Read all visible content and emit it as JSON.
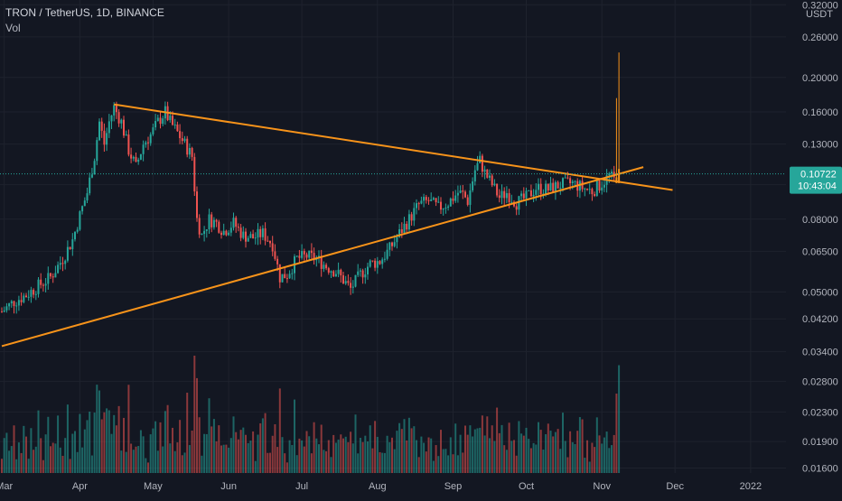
{
  "chart_data": {
    "type": "candlestick",
    "title": "TRON / TetherUS, 1D, BINANCE",
    "indicator_label": "Vol",
    "currency_label": "USDT",
    "y_scale": "log",
    "ylim": [
      0.0155,
      0.33
    ],
    "y_ticks": [
      "0.32000",
      "0.26000",
      "0.20000",
      "0.16000",
      "0.13000",
      "0.10000",
      "0.08000",
      "0.06500",
      "0.05000",
      "0.04200",
      "0.03400",
      "0.02800",
      "0.02300",
      "0.01900",
      "0.01600"
    ],
    "x_ticks": [
      "Mar",
      "Apr",
      "May",
      "Jun",
      "Jul",
      "Aug",
      "Sep",
      "Oct",
      "Nov",
      "Dec",
      "2022"
    ],
    "last_price": "0.10722",
    "countdown": "10:43:04",
    "colors": {
      "up": "#26a69a",
      "down": "#ef5350",
      "trendline": "#f7931a",
      "background": "#131722",
      "price_tag": "#26a69a"
    },
    "trendlines": [
      {
        "name": "descending-resistance",
        "from": {
          "date": "2021-04-15",
          "price": 0.168
        },
        "to": {
          "date": "2021-11-30",
          "price": 0.0966
        }
      },
      {
        "name": "ascending-support",
        "from": {
          "date": "2021-02-28",
          "price": 0.0352
        },
        "to": {
          "date": "2021-11-18",
          "price": 0.112
        }
      }
    ],
    "price_path": [
      [
        "2021-02-28",
        0.044
      ],
      [
        "2021-03-05",
        0.047
      ],
      [
        "2021-03-10",
        0.049
      ],
      [
        "2021-03-15",
        0.052
      ],
      [
        "2021-03-20",
        0.055
      ],
      [
        "2021-03-25",
        0.062
      ],
      [
        "2021-03-29",
        0.07
      ],
      [
        "2021-04-01",
        0.082
      ],
      [
        "2021-04-04",
        0.095
      ],
      [
        "2021-04-07",
        0.12
      ],
      [
        "2021-04-09",
        0.15
      ],
      [
        "2021-04-11",
        0.13
      ],
      [
        "2021-04-13",
        0.15
      ],
      [
        "2021-04-15",
        0.165
      ],
      [
        "2021-04-18",
        0.15
      ],
      [
        "2021-04-21",
        0.125
      ],
      [
        "2021-04-24",
        0.112
      ],
      [
        "2021-04-27",
        0.13
      ],
      [
        "2021-04-30",
        0.138
      ],
      [
        "2021-05-03",
        0.15
      ],
      [
        "2021-05-06",
        0.16
      ],
      [
        "2021-05-08",
        0.15
      ],
      [
        "2021-05-11",
        0.14
      ],
      [
        "2021-05-14",
        0.13
      ],
      [
        "2021-05-17",
        0.12
      ],
      [
        "2021-05-19",
        0.08
      ],
      [
        "2021-05-21",
        0.072
      ],
      [
        "2021-05-24",
        0.08
      ],
      [
        "2021-05-27",
        0.078
      ],
      [
        "2021-05-30",
        0.074
      ],
      [
        "2021-06-03",
        0.078
      ],
      [
        "2021-06-07",
        0.072
      ],
      [
        "2021-06-11",
        0.071
      ],
      [
        "2021-06-15",
        0.073
      ],
      [
        "2021-06-19",
        0.068
      ],
      [
        "2021-06-22",
        0.055
      ],
      [
        "2021-06-25",
        0.056
      ],
      [
        "2021-06-29",
        0.062
      ],
      [
        "2021-07-03",
        0.063
      ],
      [
        "2021-07-07",
        0.062
      ],
      [
        "2021-07-11",
        0.059
      ],
      [
        "2021-07-15",
        0.057
      ],
      [
        "2021-07-19",
        0.053
      ],
      [
        "2021-07-21",
        0.051
      ],
      [
        "2021-07-25",
        0.056
      ],
      [
        "2021-07-29",
        0.06
      ],
      [
        "2021-08-02",
        0.061
      ],
      [
        "2021-08-06",
        0.066
      ],
      [
        "2021-08-10",
        0.073
      ],
      [
        "2021-08-14",
        0.08
      ],
      [
        "2021-08-18",
        0.088
      ],
      [
        "2021-08-22",
        0.09
      ],
      [
        "2021-08-26",
        0.086
      ],
      [
        "2021-08-30",
        0.089
      ],
      [
        "2021-09-03",
        0.095
      ],
      [
        "2021-09-05",
        0.094
      ],
      [
        "2021-09-07",
        0.09
      ],
      [
        "2021-09-10",
        0.11
      ],
      [
        "2021-09-12",
        0.117
      ],
      [
        "2021-09-14",
        0.108
      ],
      [
        "2021-09-17",
        0.1
      ],
      [
        "2021-09-20",
        0.092
      ],
      [
        "2021-09-23",
        0.095
      ],
      [
        "2021-09-27",
        0.089
      ],
      [
        "2021-10-01",
        0.092
      ],
      [
        "2021-10-05",
        0.098
      ],
      [
        "2021-10-10",
        0.097
      ],
      [
        "2021-10-15",
        0.1
      ],
      [
        "2021-10-20",
        0.101
      ],
      [
        "2021-10-24",
        0.098
      ],
      [
        "2021-10-28",
        0.096
      ],
      [
        "2021-11-01",
        0.101
      ],
      [
        "2021-11-04",
        0.106
      ],
      [
        "2021-11-06",
        0.103
      ],
      [
        "2021-11-08",
        0.107
      ]
    ],
    "spike_candles": [
      {
        "date": "2021-11-07",
        "low": 0.104,
        "high": 0.175
      },
      {
        "date": "2021-11-08",
        "low": 0.104,
        "high": 0.235
      }
    ]
  }
}
